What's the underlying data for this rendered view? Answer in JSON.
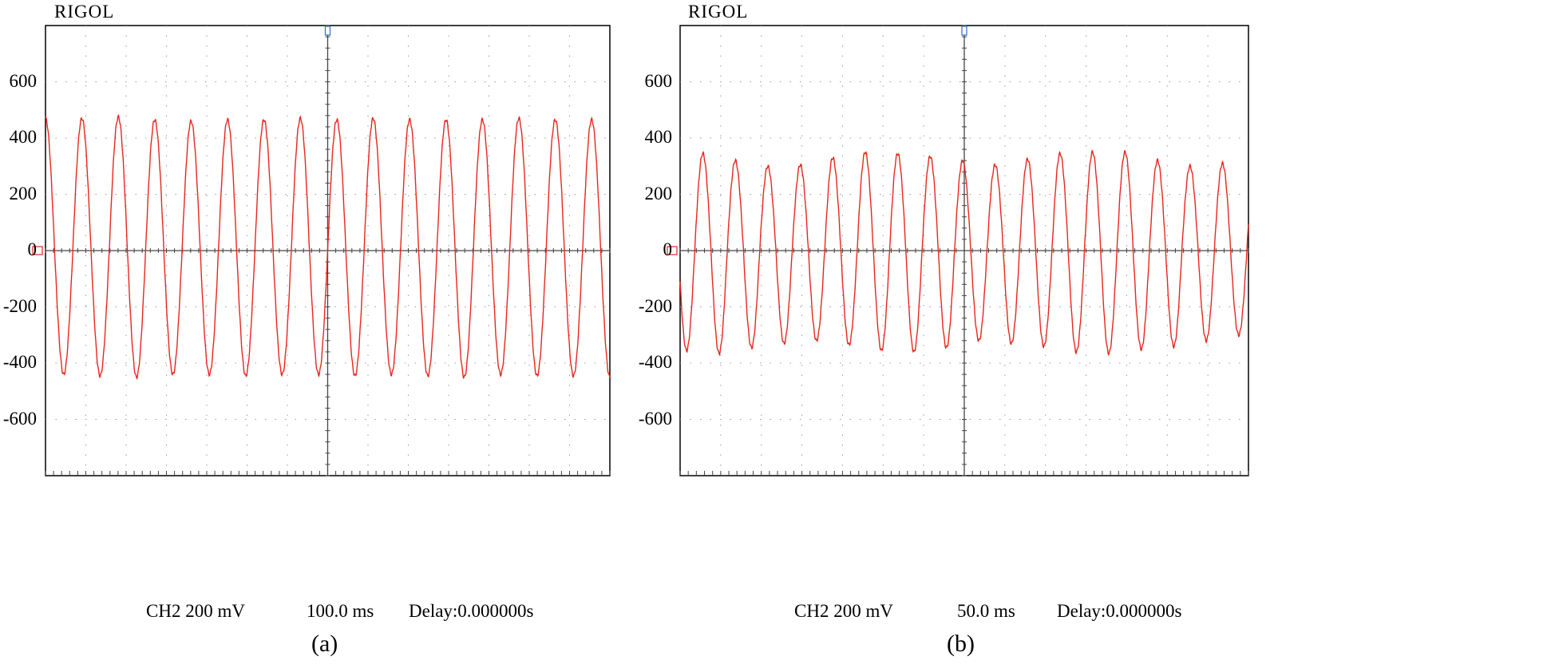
{
  "chart_data": [
    {
      "type": "line",
      "brand": "RIGOL",
      "caption": "(a)",
      "channel_label": "CH2 200 mV",
      "timebase_label": "100.0 ms",
      "delay_label": "Delay:0.000000s",
      "ylim": [
        -800,
        800
      ],
      "yticks": [
        600,
        400,
        200,
        0,
        -200,
        -400,
        -600
      ],
      "ytick_labels": [
        "600",
        "400",
        "200",
        "0",
        "-200",
        "-400",
        "-600"
      ],
      "grid": true,
      "series": [
        {
          "name": "CH2",
          "color": "#e8261e",
          "cycles": 15.5,
          "start_phase": 0.25,
          "peaks": [
            470,
            470,
            475,
            465,
            460,
            465,
            465,
            470,
            465,
            470,
            465,
            465,
            465,
            470,
            465,
            465
          ],
          "troughs": [
            -440,
            -445,
            -450,
            -440,
            -440,
            -445,
            -440,
            -440,
            -445,
            -440,
            -445,
            -450,
            -440,
            -445,
            -445,
            -450
          ]
        }
      ]
    },
    {
      "type": "line",
      "brand": "RIGOL",
      "caption": "(b)",
      "channel_label": "CH2 200 mV",
      "timebase_label": "50.0 ms",
      "delay_label": "Delay:0.000000s",
      "ylim": [
        -800,
        800
      ],
      "yticks": [
        600,
        400,
        200,
        0,
        -200,
        -400,
        -600
      ],
      "ytick_labels": [
        "600",
        "400",
        "200",
        "0",
        "-200",
        "-400",
        "-600"
      ],
      "grid": true,
      "series": [
        {
          "name": "CH2",
          "color": "#e8261e",
          "cycles": 17.5,
          "start_phase": 0.55,
          "peaks": [
            345,
            345,
            320,
            300,
            305,
            330,
            350,
            345,
            335,
            320,
            305,
            325,
            345,
            350,
            350,
            320,
            300,
            310
          ],
          "troughs": [
            -355,
            -365,
            -345,
            -330,
            -320,
            -335,
            -355,
            -360,
            -345,
            -320,
            -330,
            -340,
            -360,
            -365,
            -350,
            -340,
            -320,
            -300
          ]
        }
      ]
    }
  ]
}
